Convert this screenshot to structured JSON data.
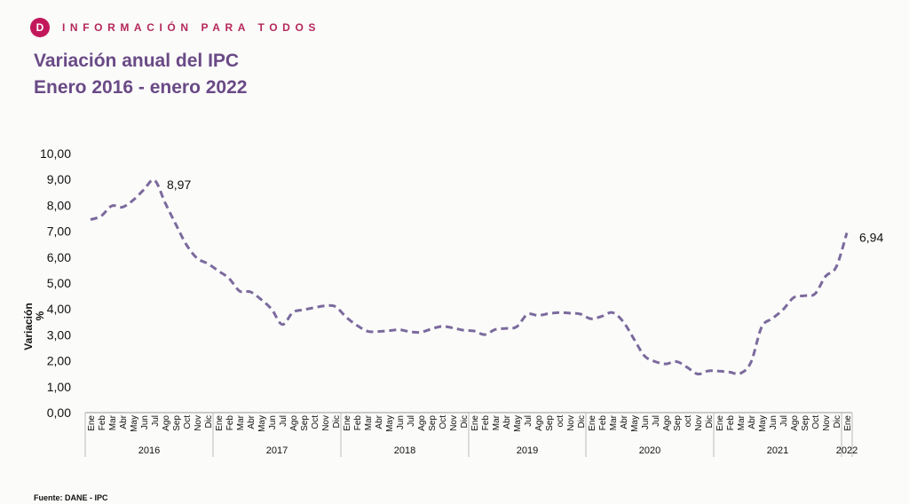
{
  "header": {
    "logo_letter": "D",
    "tagline": "INFORMACIÓN PARA TODOS",
    "brand_color": "#c2185b"
  },
  "title": {
    "line1": "Variación anual del IPC",
    "line2": "Enero 2016 - enero 2022"
  },
  "source": "Fuente: DANE - IPC",
  "chart_data": {
    "type": "line",
    "ylabel": "Variación %",
    "ylim": [
      0,
      10
    ],
    "yticks": [
      "0,00",
      "1,00",
      "2,00",
      "3,00",
      "4,00",
      "5,00",
      "6,00",
      "7,00",
      "8,00",
      "9,00",
      "10,00"
    ],
    "line_color": "#7b6a9d",
    "line_style": "dashed",
    "grid": false,
    "x_axis_groups": [
      {
        "year": "2016",
        "months": [
          "Ene",
          "Feb",
          "Mar",
          "Abr",
          "May",
          "Jun",
          "Jul",
          "Ago",
          "Sep",
          "Oct",
          "Nov",
          "Dic"
        ]
      },
      {
        "year": "2017",
        "months": [
          "Ene",
          "Feb",
          "Mar",
          "Abr",
          "May",
          "Jun",
          "Jul",
          "Ago",
          "Sep",
          "Oct",
          "Nov",
          "Dic"
        ]
      },
      {
        "year": "2018",
        "months": [
          "Ene",
          "Feb",
          "Mar",
          "Abr",
          "May",
          "Jun",
          "Jul",
          "Ago",
          "Sep",
          "Oct",
          "Nov",
          "Dic"
        ]
      },
      {
        "year": "2019",
        "months": [
          "Ene",
          "Feb",
          "Mar",
          "Abr",
          "May",
          "Jul",
          "Ago",
          "Sep",
          "oct",
          "Nov",
          "Dic"
        ]
      },
      {
        "year": "2020",
        "months": [
          "Ene",
          "Feb",
          "Mar",
          "Abr",
          "May",
          "Jun",
          "Jul",
          "Ago",
          "Sep",
          "oct",
          "Nov",
          "Dic"
        ]
      },
      {
        "year": "2021",
        "months": [
          "Ene",
          "Feb",
          "Mar",
          "Abr",
          "May",
          "Jun",
          "Jul",
          "Ago",
          "Sep",
          "Oct",
          "Nov",
          "Dic"
        ]
      },
      {
        "year": "2022",
        "months": [
          "Ene"
        ]
      }
    ],
    "series": [
      {
        "values": [
          7.45,
          7.59,
          7.98,
          7.93,
          8.2,
          8.6,
          8.97,
          8.1,
          7.27,
          6.48,
          5.96,
          5.75,
          5.47,
          5.18,
          4.69,
          4.66,
          4.37,
          3.99,
          3.4,
          3.87,
          3.97,
          4.05,
          4.12,
          4.09,
          3.68,
          3.37,
          3.14,
          3.13,
          3.16,
          3.2,
          3.12,
          3.1,
          3.23,
          3.33,
          3.27,
          3.18,
          3.15,
          3.01,
          3.21,
          3.25,
          3.31,
          3.79,
          3.75,
          3.82,
          3.86,
          3.84,
          3.8,
          3.62,
          3.72,
          3.86,
          3.51,
          2.85,
          2.19,
          1.97,
          1.88,
          1.97,
          1.75,
          1.49,
          1.61,
          1.6,
          1.56,
          1.51,
          1.95,
          3.3,
          3.63,
          3.97,
          4.44,
          4.51,
          4.58,
          5.26,
          5.62,
          6.94
        ]
      }
    ],
    "annotations": [
      {
        "text": "8,97",
        "index": 6
      },
      {
        "text": "6,94",
        "index": 71
      }
    ]
  }
}
